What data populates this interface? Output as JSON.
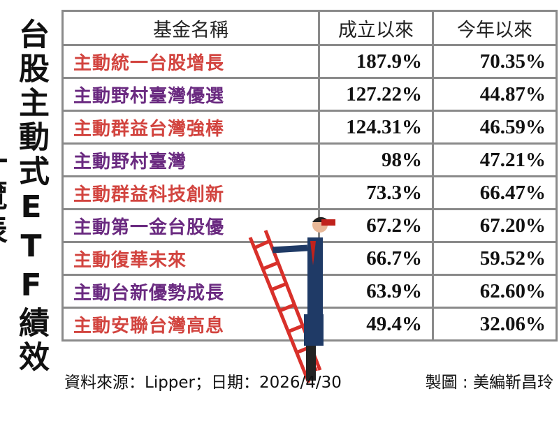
{
  "title": "台股主動式ETF績效一覽表",
  "table": {
    "header": [
      "基金名稱",
      "成立以來",
      "今年以來"
    ],
    "rows": [
      [
        "主動統一台股增長",
        "187.9%",
        "70.35%"
      ],
      [
        "主動野村臺灣優選",
        "127.22%",
        "44.87%"
      ],
      [
        "主動群益台灣強棒",
        "124.31%",
        "46.59%"
      ],
      [
        "主動野村臺灣",
        "98%",
        "47.21%"
      ],
      [
        "主動群益科技創新",
        "73.3%",
        "66.47%"
      ],
      [
        "主動第一金台股優",
        "67.2%",
        "67.20%"
      ],
      [
        "主動復華未來",
        "66.7%",
        "59.52%"
      ],
      [
        "主動台新優勢成長",
        "63.9%",
        "62.60%"
      ],
      [
        "主動安聯台灣高息",
        "49.4%",
        "32.06%"
      ]
    ]
  },
  "footer": {
    "source": "資料來源：Lipper；日期：2026/4/30",
    "credit": "製圖 : 美編靳昌玲"
  }
}
